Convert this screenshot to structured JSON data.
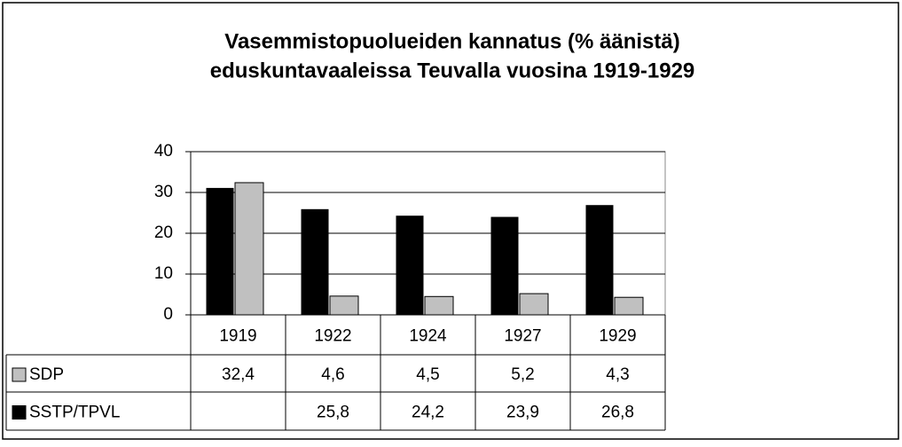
{
  "chart_data": {
    "type": "bar",
    "title": "Vasemmistopuolueiden kannatus (% äänistä)",
    "subtitle": "eduskuntavaaleissa Teuvalla vuosina 1919-1929",
    "categories": [
      "1919",
      "1922",
      "1924",
      "1927",
      "1929"
    ],
    "series": [
      {
        "name": "SDP",
        "color": "#c0c0c0",
        "values": [
          32.4,
          4.6,
          4.5,
          5.2,
          4.3
        ],
        "value_labels": [
          "32,4",
          "4,6",
          "4,5",
          "5,2",
          "4,3"
        ]
      },
      {
        "name": "SSTP/TPVL",
        "color": "#000000",
        "values": [
          31,
          25.8,
          24.2,
          23.9,
          26.8
        ],
        "value_labels": [
          null,
          "25,8",
          "24,2",
          "23,9",
          "26,8"
        ]
      }
    ],
    "ylim": [
      0,
      40
    ],
    "yticks": [
      0,
      10,
      20,
      30,
      40
    ],
    "grid": true
  }
}
